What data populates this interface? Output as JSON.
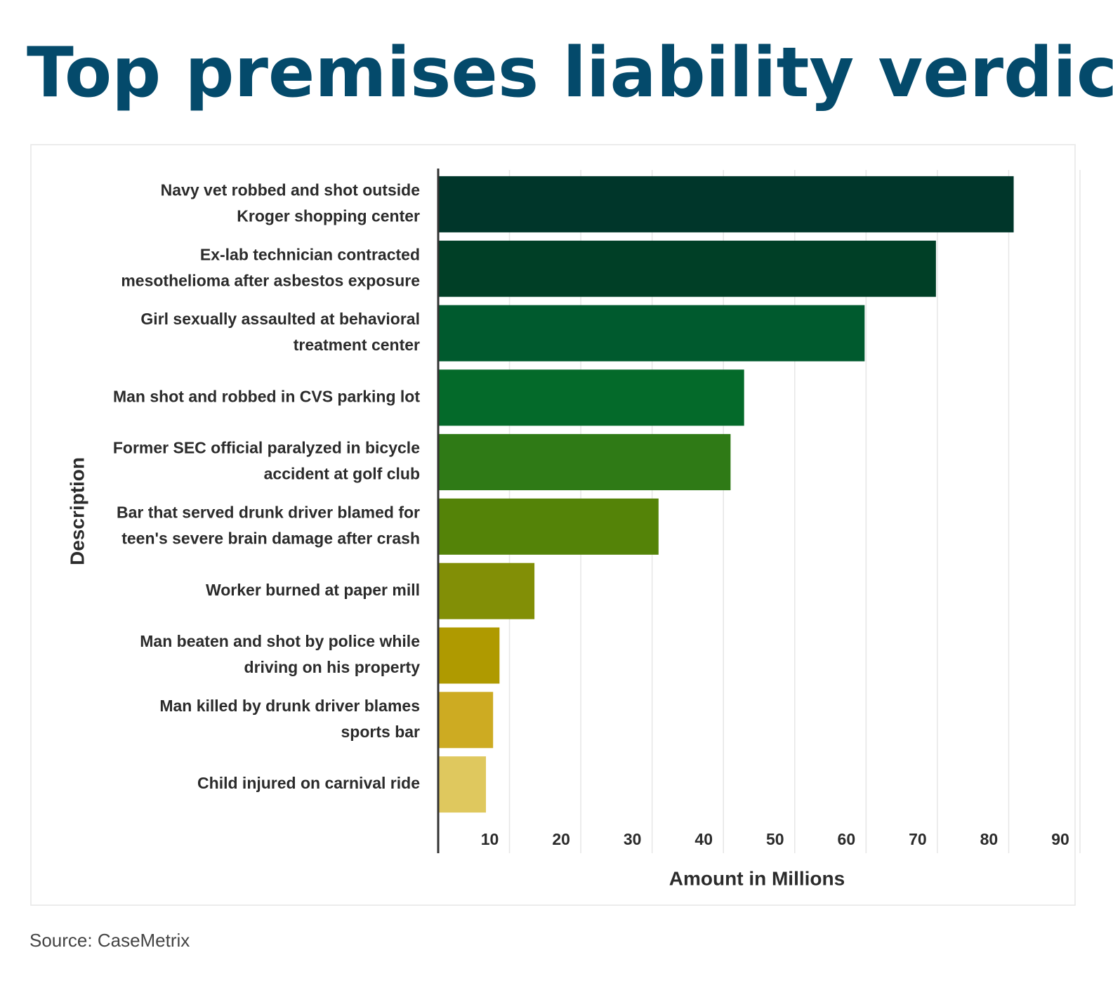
{
  "chart_data": {
    "type": "bar",
    "orientation": "horizontal",
    "title": "Top premises liability verdicts",
    "y_label": "Description",
    "x_label": "Amount in Millions",
    "source": "Source: CaseMetrix",
    "categories": [
      [
        "Navy vet robbed and shot outside",
        "Kroger shopping center"
      ],
      [
        "Ex-lab technician contracted",
        "mesothelioma after asbestos exposure"
      ],
      [
        "Girl sexually assaulted at behavioral",
        "treatment center"
      ],
      [
        "Man shot and robbed in CVS parking lot"
      ],
      [
        "Former SEC official paralyzed in bicycle",
        "accident at golf club"
      ],
      [
        "Bar that served drunk driver blamed for",
        "teen's severe brain damage after crash"
      ],
      [
        "Worker burned at paper mill"
      ],
      [
        "Man beaten and shot by police while",
        "driving on his property"
      ],
      [
        "Man killed by drunk driver blames",
        "sports bar"
      ],
      [
        "Child injured on carnival ride"
      ]
    ],
    "values": [
      80.7,
      69.8,
      59.8,
      42.9,
      41.0,
      30.9,
      13.5,
      8.6,
      7.7,
      6.7
    ],
    "colors": [
      "#00362a",
      "#003f26",
      "#005a2e",
      "#046a2a",
      "#2f7a16",
      "#548308",
      "#828f06",
      "#af9a00",
      "#cdab22",
      "#dfc85e"
    ],
    "xlim": [
      0,
      90
    ],
    "xticks": [
      10,
      20,
      30,
      40,
      50,
      60,
      70,
      80,
      90
    ],
    "grid": true
  }
}
